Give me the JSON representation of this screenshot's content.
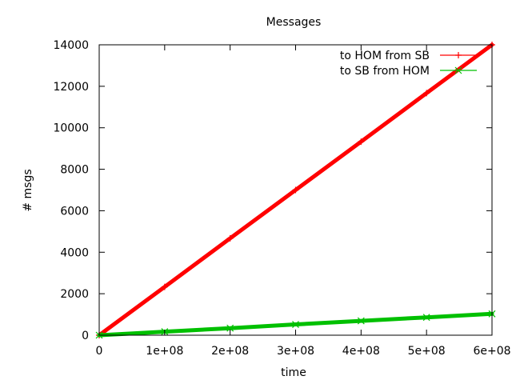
{
  "chart_data": {
    "type": "line",
    "title": "Messages",
    "xlabel": "time",
    "ylabel": "# msgs",
    "xlim": [
      0,
      600000000
    ],
    "ylim": [
      0,
      14000
    ],
    "xticks": [
      0,
      100000000,
      200000000,
      300000000,
      400000000,
      500000000,
      600000000
    ],
    "xtick_labels": [
      "0",
      "1e+08",
      "2e+08",
      "3e+08",
      "4e+08",
      "5e+08",
      "6e+08"
    ],
    "yticks": [
      0,
      2000,
      4000,
      6000,
      8000,
      10000,
      12000,
      14000
    ],
    "ytick_labels": [
      "0",
      "2000",
      "4000",
      "6000",
      "8000",
      "10000",
      "12000",
      "14000"
    ],
    "grid": false,
    "legend_position": "top-right",
    "series": [
      {
        "name": "to HOM from SB",
        "color": "#ff0000",
        "marker": "plus",
        "x": [
          0,
          100000000,
          200000000,
          300000000,
          400000000,
          500000000,
          600000000
        ],
        "y": [
          0,
          2330,
          4670,
          7000,
          9330,
          11670,
          14000
        ]
      },
      {
        "name": "to SB from HOM",
        "color": "#00c000",
        "marker": "cross",
        "x": [
          0,
          100000000,
          200000000,
          300000000,
          400000000,
          500000000,
          600000000
        ],
        "y": [
          0,
          170,
          340,
          520,
          690,
          860,
          1030
        ]
      }
    ]
  }
}
